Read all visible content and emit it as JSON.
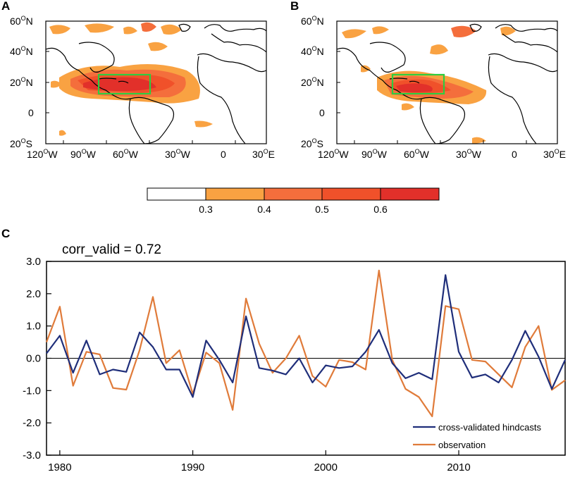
{
  "panels": {
    "a": {
      "label": "A",
      "lat_labels": [
        "60",
        "40",
        "20",
        "0",
        "20"
      ],
      "lat_suffix": [
        "N",
        "N",
        "N",
        "",
        "S"
      ],
      "lon_labels": [
        "120",
        "90",
        "60",
        "30",
        "0",
        "30"
      ],
      "lon_suffix": [
        "W",
        "W",
        "W",
        "W",
        "",
        "E"
      ]
    },
    "b": {
      "label": "B",
      "lat_labels": [
        "60",
        "40",
        "20",
        "0",
        "20"
      ],
      "lat_suffix": [
        "N",
        "N",
        "N",
        "",
        "S"
      ],
      "lon_labels": [
        "120",
        "90",
        "60",
        "30",
        "0",
        "30"
      ],
      "lon_suffix": [
        "W",
        "W",
        "W",
        "W",
        "",
        "E"
      ]
    },
    "c": {
      "label": "C"
    }
  },
  "colorbar": {
    "ticks": [
      "0.3",
      "0.4",
      "0.5",
      "0.6"
    ],
    "colors": [
      "#ffffff",
      "#f9a242",
      "#f46e3c",
      "#f0512a",
      "#e2302a"
    ]
  },
  "map_colors": {
    "c1": "#f9a242",
    "c2": "#f46e3c",
    "c3": "#f0512a",
    "c4": "#e2302a",
    "box": "#2ecc40"
  },
  "chart_data": {
    "type": "line",
    "title": "corr_valid =   0.72",
    "x": [
      1979,
      1980,
      1981,
      1982,
      1983,
      1984,
      1985,
      1986,
      1987,
      1988,
      1989,
      1990,
      1991,
      1992,
      1993,
      1994,
      1995,
      1996,
      1997,
      1998,
      1999,
      2000,
      2001,
      2002,
      2003,
      2004,
      2005,
      2006,
      2007,
      2008,
      2009,
      2010,
      2011,
      2012,
      2013,
      2014,
      2015,
      2016,
      2017,
      2018
    ],
    "xticks": [
      "1980",
      "1990",
      "2000",
      "2010"
    ],
    "xtick_values": [
      1980,
      1990,
      2000,
      2010
    ],
    "xlim": [
      1979,
      2018
    ],
    "yticks": [
      "3.0",
      "2.0",
      "1.0",
      "0.0",
      "-1.0",
      "-2.0",
      "-3.0"
    ],
    "ytick_values": [
      3,
      2,
      1,
      0,
      -1,
      -2,
      -3
    ],
    "ylim": [
      -3,
      3
    ],
    "series": [
      {
        "name": "cross-validated hindcasts",
        "color": "#1f2e7a",
        "values": [
          0.15,
          0.7,
          -0.45,
          0.55,
          -0.5,
          -0.35,
          -0.42,
          0.8,
          0.35,
          -0.35,
          -0.35,
          -1.2,
          0.55,
          -0.05,
          -0.75,
          1.3,
          -0.3,
          -0.38,
          -0.5,
          0.0,
          -0.75,
          -0.22,
          -0.3,
          -0.25,
          0.2,
          0.88,
          -0.15,
          -0.62,
          -0.45,
          -0.65,
          2.58,
          0.2,
          -0.6,
          -0.5,
          -0.75,
          -0.05,
          0.85,
          0.05,
          -0.95,
          -0.05
        ]
      },
      {
        "name": "observation",
        "color": "#e07b3a",
        "values": [
          0.5,
          1.6,
          -0.85,
          0.2,
          0.12,
          -0.92,
          -0.97,
          0.25,
          1.9,
          -0.15,
          0.25,
          -1.1,
          0.18,
          -0.15,
          -1.6,
          1.85,
          0.45,
          -0.45,
          0.0,
          0.7,
          -0.55,
          -0.88,
          -0.05,
          -0.12,
          -0.35,
          2.72,
          -0.05,
          -0.95,
          -1.2,
          -1.8,
          1.62,
          1.52,
          -0.05,
          -0.1,
          -0.5,
          -0.9,
          0.35,
          1.0,
          -0.98,
          -0.68
        ]
      }
    ],
    "legend": [
      "cross-validated hindcasts",
      "observation"
    ],
    "legend_position": "bottom-right",
    "reference_line": 0
  }
}
